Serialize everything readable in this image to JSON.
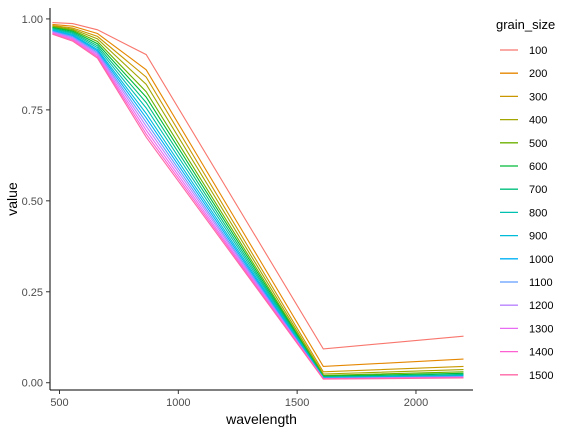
{
  "chart_data": {
    "type": "line",
    "title": "",
    "xlabel": "wavelength",
    "ylabel": "value",
    "xlim": [
      460,
      2240
    ],
    "ylim": [
      -0.02,
      1.03
    ],
    "x_ticks": [
      500,
      1000,
      1500,
      2000
    ],
    "y_ticks": [
      0,
      0.25,
      0.5,
      0.75,
      1.0
    ],
    "x_tick_labels": [
      "500",
      "1000",
      "1500",
      "2000"
    ],
    "y_tick_labels": [
      "0.00",
      "0.25",
      "0.50",
      "0.75",
      "1.00"
    ],
    "grid": false,
    "legend": {
      "title": "grain_size",
      "position": "right"
    },
    "x": [
      470,
      555,
      660,
      865,
      1610,
      2200
    ],
    "series": [
      {
        "name": "100",
        "color": "#F8766D",
        "values": [
          0.99,
          0.987,
          0.97,
          0.902,
          0.093,
          0.128
        ]
      },
      {
        "name": "200",
        "color": "#E58700",
        "values": [
          0.985,
          0.98,
          0.96,
          0.86,
          0.045,
          0.065
        ]
      },
      {
        "name": "300",
        "color": "#C99800",
        "values": [
          0.982,
          0.975,
          0.952,
          0.84,
          0.03,
          0.045
        ]
      },
      {
        "name": "400",
        "color": "#A3A500",
        "values": [
          0.98,
          0.972,
          0.945,
          0.82,
          0.024,
          0.036
        ]
      },
      {
        "name": "500",
        "color": "#6BB100",
        "values": [
          0.978,
          0.969,
          0.938,
          0.8,
          0.02,
          0.03
        ]
      },
      {
        "name": "600",
        "color": "#00BA38",
        "values": [
          0.976,
          0.966,
          0.932,
          0.785,
          0.018,
          0.026
        ]
      },
      {
        "name": "700",
        "color": "#00BF7D",
        "values": [
          0.974,
          0.963,
          0.926,
          0.77,
          0.016,
          0.023
        ]
      },
      {
        "name": "800",
        "color": "#00C0AF",
        "values": [
          0.972,
          0.96,
          0.921,
          0.755,
          0.015,
          0.021
        ]
      },
      {
        "name": "900",
        "color": "#00BCD8",
        "values": [
          0.97,
          0.957,
          0.916,
          0.74,
          0.014,
          0.019
        ]
      },
      {
        "name": "1000",
        "color": "#00B0F6",
        "values": [
          0.968,
          0.954,
          0.912,
          0.728,
          0.013,
          0.018
        ]
      },
      {
        "name": "1100",
        "color": "#619CFF",
        "values": [
          0.966,
          0.951,
          0.908,
          0.716,
          0.012,
          0.017
        ]
      },
      {
        "name": "1200",
        "color": "#B983FF",
        "values": [
          0.964,
          0.948,
          0.904,
          0.705,
          0.012,
          0.016
        ]
      },
      {
        "name": "1300",
        "color": "#E76BF3",
        "values": [
          0.962,
          0.945,
          0.9,
          0.694,
          0.011,
          0.015
        ]
      },
      {
        "name": "1400",
        "color": "#FD61D1",
        "values": [
          0.96,
          0.942,
          0.896,
          0.684,
          0.011,
          0.014
        ]
      },
      {
        "name": "1500",
        "color": "#FF67A4",
        "values": [
          0.958,
          0.939,
          0.892,
          0.675,
          0.01,
          0.013
        ]
      }
    ]
  }
}
